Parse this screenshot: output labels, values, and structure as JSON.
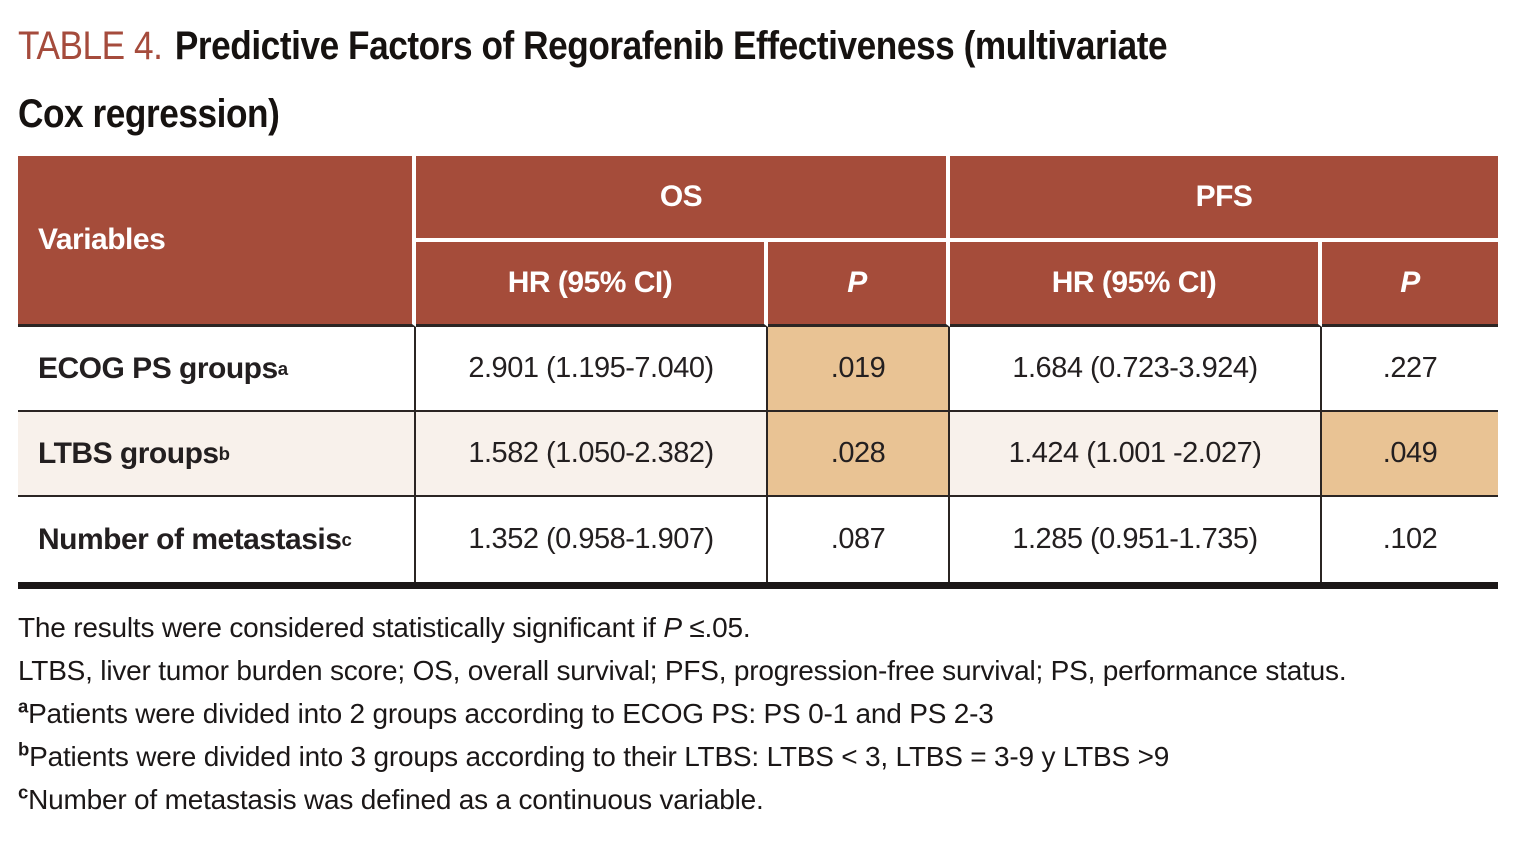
{
  "title": {
    "label": "TABLE 4.",
    "line1": "Predictive Factors of Regorafenib Effectiveness (multivariate",
    "line2": "Cox regression)"
  },
  "table": {
    "col_variables": "Variables",
    "group_os": "OS",
    "group_pfs": "PFS",
    "col_os_hr": "HR (95% CI)",
    "col_os_p": "P",
    "col_pfs_hr": "HR (95% CI)",
    "col_pfs_p": "P",
    "rows": [
      {
        "variable": "ECOG PS groups",
        "sup": "a",
        "os_hr": "2.901 (1.195-7.040)",
        "os_p": ".019",
        "pfs_hr": "1.684 (0.723-3.924)",
        "pfs_p": ".227"
      },
      {
        "variable": "LTBS groups",
        "sup": "b",
        "os_hr": "1.582 (1.050-2.382)",
        "os_p": ".028",
        "pfs_hr": "1.424 (1.001 -2.027)",
        "pfs_p": ".049"
      },
      {
        "variable": "Number of metastasis",
        "sup": "c",
        "os_hr": "1.352 (0.958-1.907)",
        "os_p": ".087",
        "pfs_hr": "1.285 (0.951-1.735)",
        "pfs_p": ".102"
      }
    ]
  },
  "footnotes": {
    "significance_prefix": "The results were considered statistically significant if ",
    "significance_p": "P",
    "significance_suffix": " ≤.05.",
    "abbreviations": "LTBS, liver tumor burden score; OS, overall survival; PFS, progression-free survival; PS, performance status.",
    "a_sup": "a",
    "a_text": "Patients were divided into 2 groups according to ECOG PS: PS 0-1 and PS 2-3",
    "b_sup": "b",
    "b_text": "Patients were divided into 3 groups according to their LTBS: LTBS < 3, LTBS = 3-9 y LTBS >9",
    "c_sup": "c",
    "c_text": "Number of metastasis was defined as a continuous variable."
  },
  "colors": {
    "header_brick": "#A54C3A",
    "highlight_tan": "#E9C394",
    "row_cream": "#F8F1EB",
    "title_red": "#A54B3C",
    "border_dark": "#2B2523"
  }
}
